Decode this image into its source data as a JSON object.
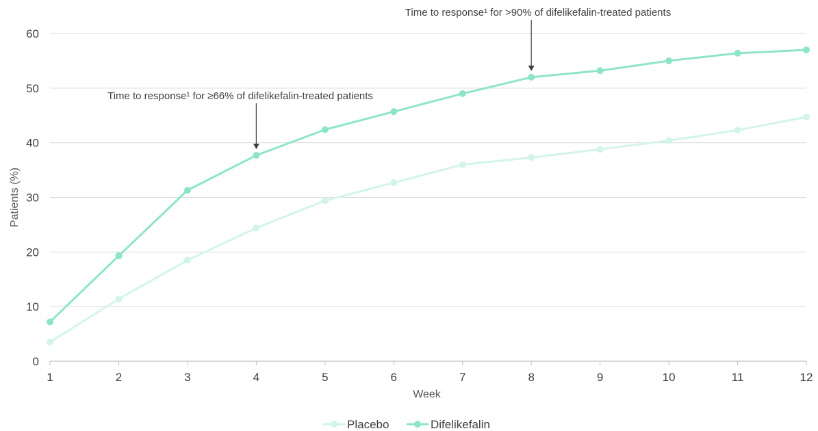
{
  "chart_data": {
    "type": "line",
    "title": "",
    "xlabel": "Week",
    "ylabel": "Patients (%)",
    "x": [
      1,
      2,
      3,
      4,
      5,
      6,
      7,
      8,
      9,
      10,
      11,
      12
    ],
    "ylim": [
      0,
      60
    ],
    "yticks": [
      0,
      10,
      20,
      30,
      40,
      50,
      60
    ],
    "grid": "horizontal",
    "legend_position": "bottom-center",
    "series": [
      {
        "name": "Placebo",
        "color": "#d3f5e8",
        "values": [
          3.5,
          11.4,
          18.5,
          24.4,
          29.4,
          32.7,
          36.0,
          37.3,
          38.8,
          40.4,
          42.3,
          44.7
        ]
      },
      {
        "name": "Difelikefalin",
        "color": "#8de5c7",
        "values": [
          7.2,
          19.3,
          31.3,
          37.7,
          42.4,
          45.7,
          49.0,
          52.0,
          53.2,
          55.0,
          56.4,
          57.0
        ]
      }
    ],
    "annotations": [
      {
        "text": "Time to response¹ for ≥66% of difelikefalin-treated patients",
        "x": 4,
        "y": 37.7
      },
      {
        "text": "Time to response¹ for >90% of difelikefalin-treated patients",
        "x": 8,
        "y": 52.0
      }
    ]
  }
}
